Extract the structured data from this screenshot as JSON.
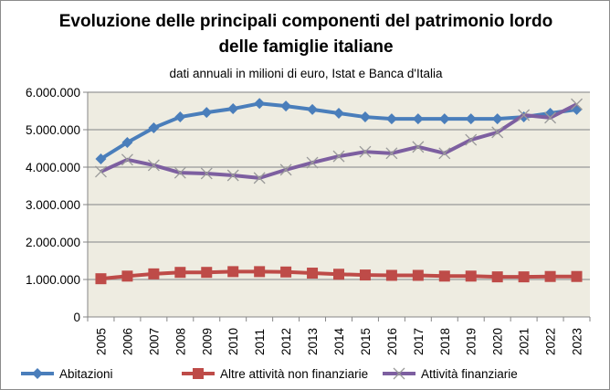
{
  "chart_data": {
    "type": "line",
    "title_line1": "Evoluzione delle principali componenti del patrimonio lordo",
    "title_line2": "delle famiglie italiane",
    "subtitle": "dati annuali in milioni di euro, Istat e Banca d'Italia",
    "xlabel": "",
    "ylabel": "",
    "ylim": [
      0,
      6000000
    ],
    "yticks": [
      0,
      1000000,
      2000000,
      3000000,
      4000000,
      5000000,
      6000000
    ],
    "ytick_labels": [
      "0",
      "1.000.000",
      "2.000.000",
      "3.000.000",
      "4.000.000",
      "5.000.000",
      "6.000.000"
    ],
    "grid": true,
    "legend_position": "bottom",
    "categories": [
      "2005",
      "2006",
      "2007",
      "2008",
      "2009",
      "2010",
      "2011",
      "2012",
      "2013",
      "2014",
      "2015",
      "2016",
      "2017",
      "2018",
      "2019",
      "2020",
      "2021",
      "2022",
      "2023"
    ],
    "series": [
      {
        "name": "Abitazioni",
        "color": "#4a7ebb",
        "marker": "diamond",
        "values": [
          4220000,
          4660000,
          5050000,
          5340000,
          5460000,
          5560000,
          5700000,
          5630000,
          5540000,
          5440000,
          5340000,
          5290000,
          5290000,
          5290000,
          5290000,
          5290000,
          5340000,
          5440000,
          5540000
        ]
      },
      {
        "name": "Altre attività non finanziarie",
        "color": "#be4b48",
        "marker": "square",
        "values": [
          1020000,
          1090000,
          1150000,
          1190000,
          1190000,
          1210000,
          1210000,
          1200000,
          1170000,
          1140000,
          1120000,
          1110000,
          1110000,
          1090000,
          1090000,
          1070000,
          1070000,
          1080000,
          1080000
        ]
      },
      {
        "name": "Attività finanziarie",
        "color": "#7d5fa0",
        "marker": "x",
        "values": [
          3880000,
          4200000,
          4050000,
          3850000,
          3830000,
          3780000,
          3710000,
          3930000,
          4120000,
          4290000,
          4410000,
          4370000,
          4540000,
          4370000,
          4730000,
          4930000,
          5390000,
          5320000,
          5680000
        ]
      }
    ]
  }
}
